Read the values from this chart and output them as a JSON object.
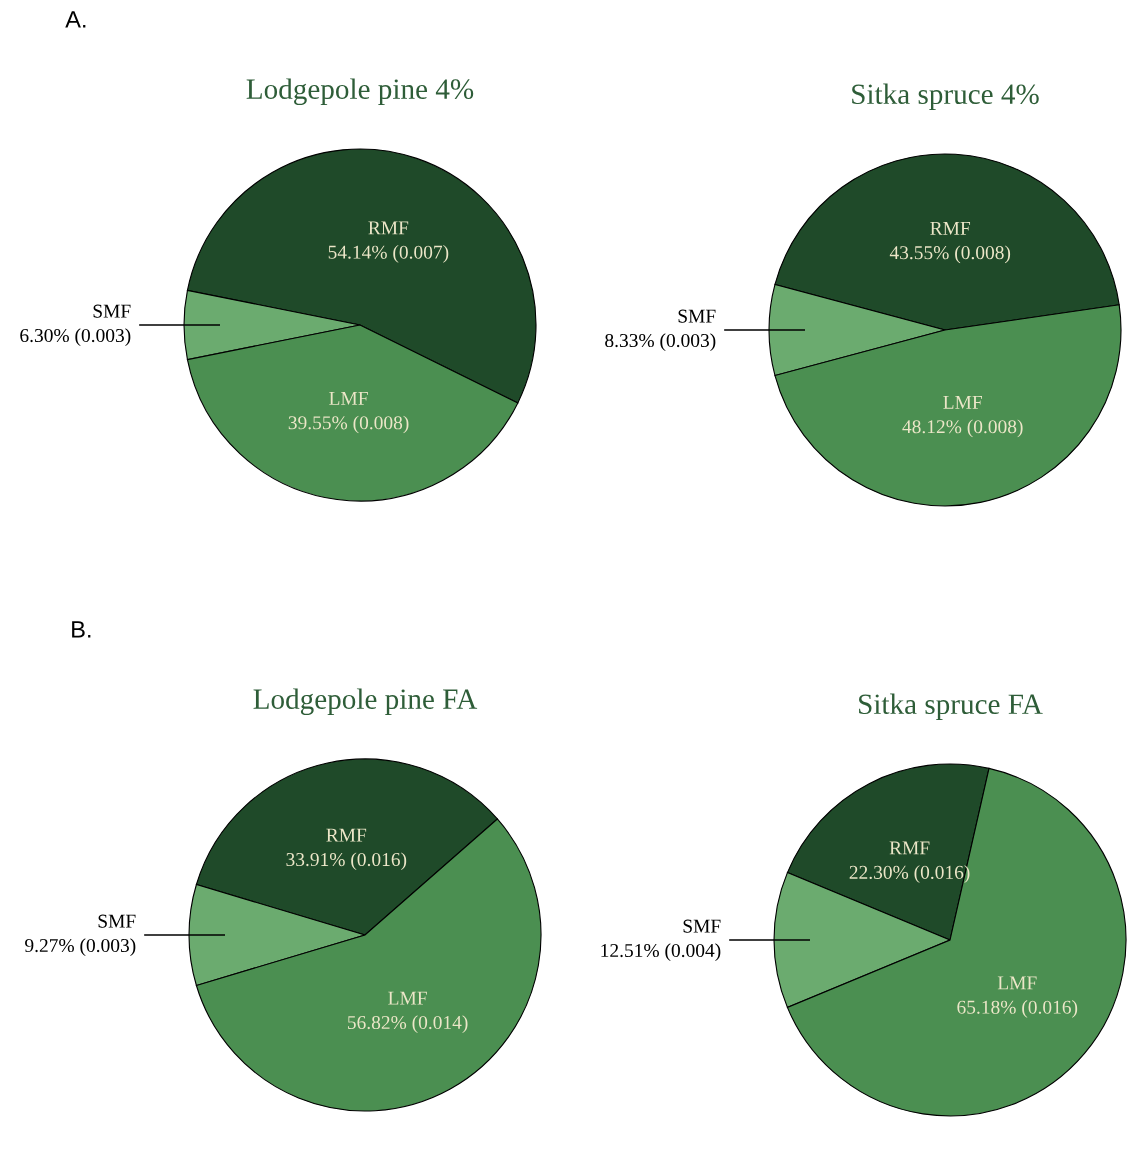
{
  "chart_data": [
    {
      "type": "pie",
      "title": "Lodgepole pine 4%",
      "categories": [
        "RMF",
        "SMF",
        "LMF"
      ],
      "values": [
        54.14,
        6.3,
        39.55
      ],
      "colors": [
        "#1f4a29",
        "#6bab6f",
        "#4b8f51"
      ],
      "value_labels": [
        "54.14% (0.007)",
        "6.30% (0.003)",
        "39.55% (0.008)"
      ],
      "annotations": [
        "A."
      ]
    },
    {
      "type": "pie",
      "title": "Sitka spruce 4%",
      "categories": [
        "RMF",
        "SMF",
        "LMF"
      ],
      "values": [
        43.55,
        8.33,
        48.12
      ],
      "colors": [
        "#1f4a29",
        "#6bab6f",
        "#4b8f51"
      ],
      "value_labels": [
        "43.55% (0.008)",
        "8.33% (0.003)",
        "48.12% (0.008)"
      ]
    },
    {
      "type": "pie",
      "title": "Lodgepole pine FA",
      "categories": [
        "RMF",
        "SMF",
        "LMF"
      ],
      "values": [
        33.91,
        9.27,
        56.82
      ],
      "colors": [
        "#1f4a29",
        "#6bab6f",
        "#4b8f51"
      ],
      "value_labels": [
        "33.91% (0.016)",
        "9.27% (0.003)",
        "56.82% (0.014)"
      ],
      "annotations": [
        "B."
      ]
    },
    {
      "type": "pie",
      "title": "Sitka spruce FA",
      "categories": [
        "RMF",
        "SMF",
        "LMF"
      ],
      "values": [
        22.3,
        12.51,
        65.18
      ],
      "colors": [
        "#1f4a29",
        "#6bab6f",
        "#4b8f51"
      ],
      "value_labels": [
        "22.30% (0.016)",
        "12.51% (0.004)",
        "65.18% (0.016)"
      ]
    }
  ]
}
